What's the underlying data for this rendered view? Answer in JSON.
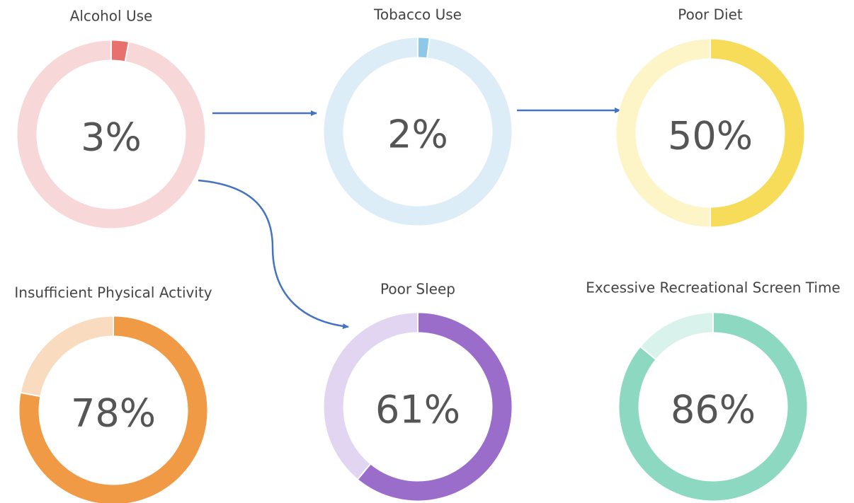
{
  "chart_data": [
    {
      "type": "donut",
      "title": "Alcohol Use",
      "values": [
        3
      ],
      "value_labels": [
        "3%"
      ],
      "color": "#e8706f",
      "track_color": "#f8d7d9"
    },
    {
      "type": "donut",
      "title": "Tobacco Use",
      "values": [
        2
      ],
      "value_labels": [
        "2%"
      ],
      "color": "#8ec8e8",
      "track_color": "#ddedf8"
    },
    {
      "type": "donut",
      "title": "Poor Diet",
      "values": [
        50
      ],
      "value_labels": [
        "50%"
      ],
      "color": "#f7dc5a",
      "track_color": "#fdf4c8"
    },
    {
      "type": "donut",
      "title": "Insufficient Physical Activity",
      "values": [
        78
      ],
      "value_labels": [
        "78%"
      ],
      "color": "#f09a45",
      "track_color": "#f9dcc0"
    },
    {
      "type": "donut",
      "title": "Poor Sleep",
      "values": [
        61
      ],
      "value_labels": [
        "61%"
      ],
      "color": "#9a6dcb",
      "track_color": "#e2d5f1"
    },
    {
      "type": "donut",
      "title": "Excessive Recreational Screen Time",
      "values": [
        86
      ],
      "value_labels": [
        "86%"
      ],
      "color": "#8dd8c0",
      "track_color": "#d9f2eb"
    }
  ]
}
